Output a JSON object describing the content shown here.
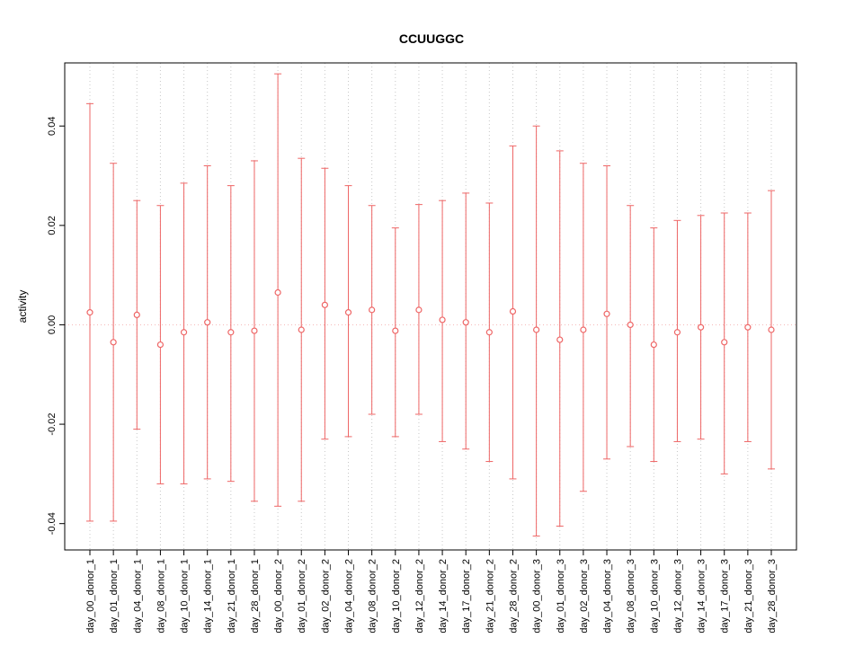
{
  "chart_data": {
    "type": "scatter",
    "title": "CCUUGGC",
    "xlabel": "",
    "ylabel": "activity",
    "ylim": [
      -0.0453,
      0.0527
    ],
    "yticks": [
      -0.04,
      -0.02,
      0,
      0.02,
      0.04
    ],
    "ytick_labels": [
      "-0.04",
      "-0.02",
      "0.00",
      "0.02",
      "0.04"
    ],
    "grid": true,
    "zero_line": true,
    "legend": "none",
    "colors": {
      "series": "#ee6666",
      "grid": "#c8c8c8",
      "zero_line": "#f6b8b8",
      "axis": "#000000"
    },
    "categories": [
      "day_00_donor_1",
      "day_01_donor_1",
      "day_04_donor_1",
      "day_08_donor_1",
      "day_10_donor_1",
      "day_14_donor_1",
      "day_21_donor_1",
      "day_28_donor_1",
      "day_00_donor_2",
      "day_01_donor_2",
      "day_02_donor_2",
      "day_04_donor_2",
      "day_08_donor_2",
      "day_10_donor_2",
      "day_12_donor_2",
      "day_14_donor_2",
      "day_17_donor_2",
      "day_21_donor_2",
      "day_28_donor_2",
      "day_00_donor_3",
      "day_01_donor_3",
      "day_02_donor_3",
      "day_04_donor_3",
      "day_08_donor_3",
      "day_10_donor_3",
      "day_12_donor_3",
      "day_14_donor_3",
      "day_17_donor_3",
      "day_21_donor_3",
      "day_28_donor_3"
    ],
    "series": [
      {
        "name": "activity",
        "values": [
          0.0025,
          -0.0035,
          0.002,
          -0.004,
          -0.0015,
          0.0005,
          -0.0015,
          -0.0012,
          0.0065,
          -0.001,
          0.004,
          0.0025,
          0.003,
          -0.0012,
          0.003,
          0.001,
          0.0005,
          -0.0015,
          0.0027,
          -0.001,
          -0.003,
          -0.001,
          0.0022,
          0.0,
          -0.004,
          -0.0015,
          -0.0005,
          -0.0035,
          -0.0005,
          -0.001
        ],
        "lower": [
          -0.0395,
          -0.0395,
          -0.021,
          -0.032,
          -0.032,
          -0.031,
          -0.0315,
          -0.0355,
          -0.0365,
          -0.0355,
          -0.023,
          -0.0225,
          -0.018,
          -0.0225,
          -0.018,
          -0.0235,
          -0.025,
          -0.0275,
          -0.031,
          -0.0425,
          -0.0405,
          -0.0335,
          -0.027,
          -0.0245,
          -0.0275,
          -0.0235,
          -0.023,
          -0.03,
          -0.0235,
          -0.029
        ],
        "upper": [
          0.0445,
          0.0325,
          0.025,
          0.024,
          0.0285,
          0.032,
          0.028,
          0.033,
          0.0505,
          0.0335,
          0.0315,
          0.028,
          0.024,
          0.0195,
          0.0242,
          0.025,
          0.0265,
          0.0245,
          0.036,
          0.04,
          0.035,
          0.0325,
          0.032,
          0.024,
          0.0195,
          0.021,
          0.022,
          0.0225,
          0.0225,
          0.027
        ]
      }
    ]
  }
}
